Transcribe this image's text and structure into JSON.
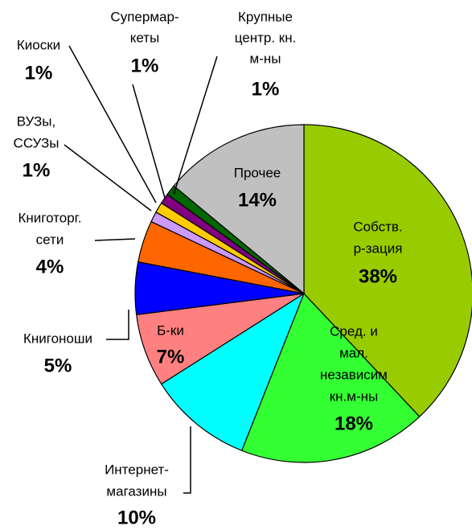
{
  "chart_data": {
    "type": "pie",
    "categories": [
      [
        "Собств.",
        "р-зация"
      ],
      [
        "Сред. и",
        "мал.",
        "независим",
        "кн.м-ны"
      ],
      [
        "Интернет-",
        "магазины"
      ],
      [
        "Б-ки"
      ],
      [
        "Книгоноши"
      ],
      [
        "Книготорг.",
        "сети"
      ],
      [
        "ВУЗы,",
        "ССУЗы"
      ],
      [
        "Киоски"
      ],
      [
        "Супермар-",
        "кеты"
      ],
      [
        "Крупные",
        "центр. кн.",
        "м-ны"
      ],
      [
        "Прочее"
      ]
    ],
    "values": [
      38,
      18,
      10,
      7,
      5,
      4,
      1,
      1,
      1,
      1,
      14
    ],
    "value_labels": [
      "38%",
      "18%",
      "10%",
      "7%",
      "5%",
      "4%",
      "1%",
      "1%",
      "1%",
      "1%",
      "14%"
    ],
    "colors": [
      "#99cc00",
      "#33ff33",
      "#00ffff",
      "#ff8080",
      "#0000ff",
      "#ff6600",
      "#cc99ff",
      "#ffcc00",
      "#800080",
      "#006600",
      "#c0c0c0"
    ]
  }
}
